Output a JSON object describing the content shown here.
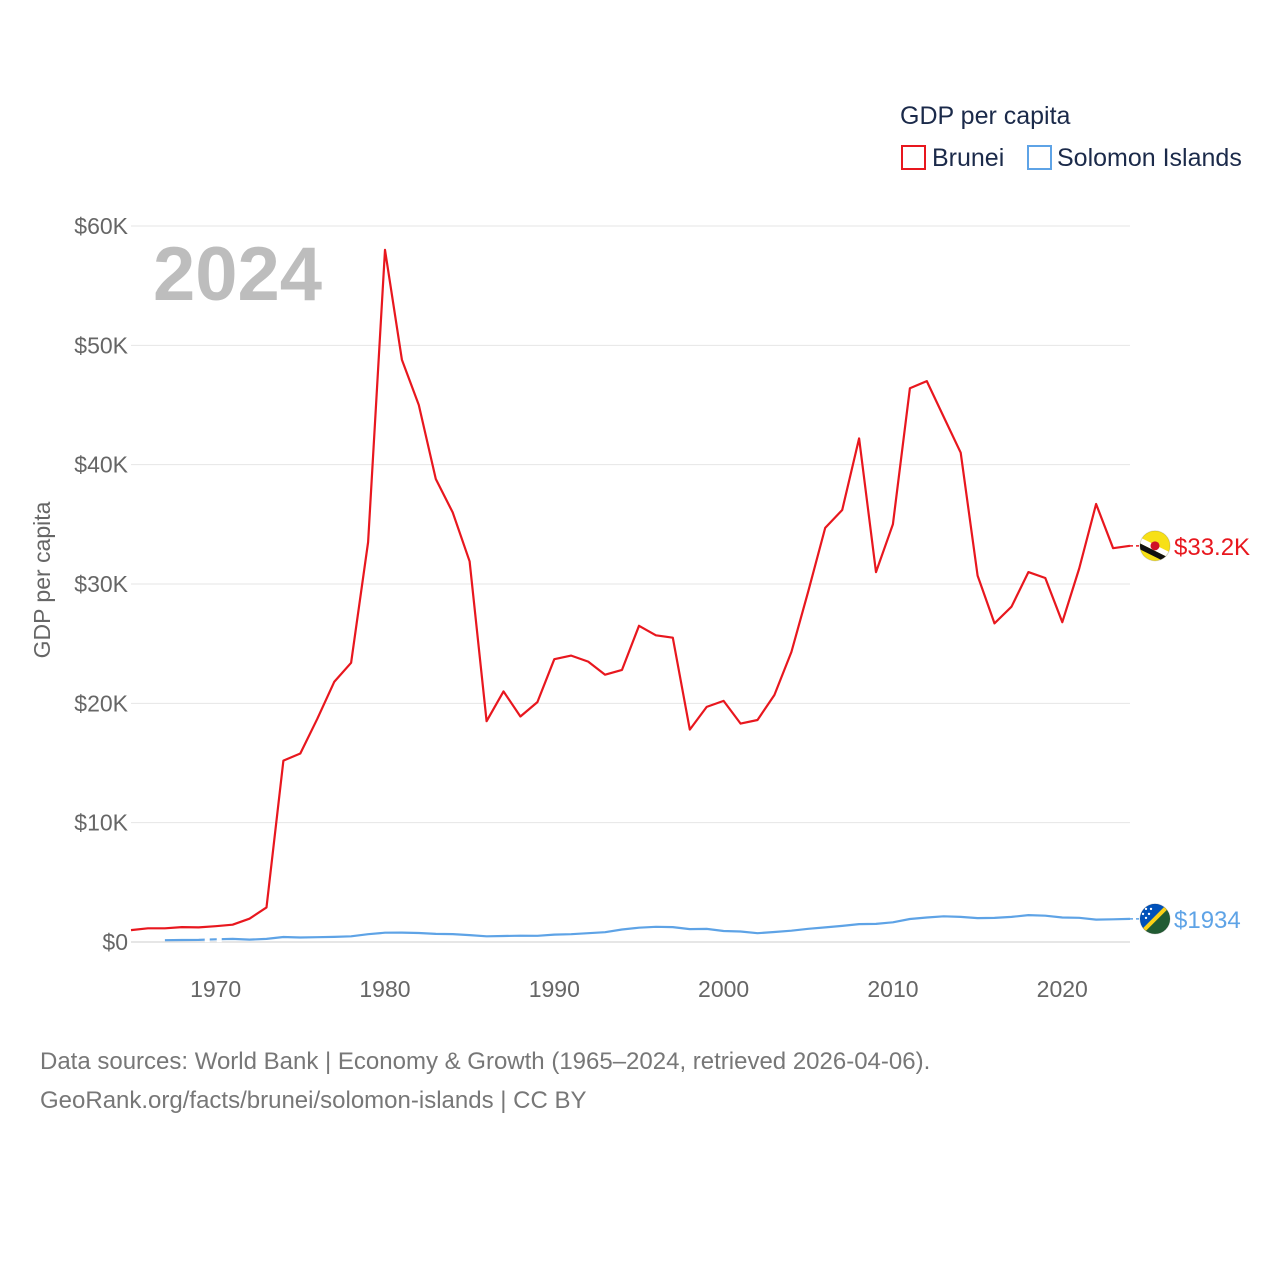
{
  "chart_data": {
    "type": "line",
    "legend": {
      "title": "GDP per capita",
      "position": "top-right"
    },
    "current_year": "2024",
    "ylabel": "GDP per capita",
    "xlim": [
      1965,
      2024
    ],
    "ylim": [
      0,
      60000
    ],
    "x_ticks": [
      1970,
      1980,
      1990,
      2000,
      2010,
      2020
    ],
    "y_ticks": [
      {
        "value": 0,
        "label": "$0"
      },
      {
        "value": 10000,
        "label": "$10K"
      },
      {
        "value": 20000,
        "label": "$20K"
      },
      {
        "value": 30000,
        "label": "$30K"
      },
      {
        "value": 40000,
        "label": "$40K"
      },
      {
        "value": 50000,
        "label": "$50K"
      },
      {
        "value": 60000,
        "label": "$60K"
      }
    ],
    "series": [
      {
        "name": "Brunei",
        "color": "#e8171e",
        "end_label": "$33.2K",
        "flag": "brunei-flag-icon",
        "x": [
          1965,
          1966,
          1967,
          1968,
          1969,
          1970,
          1971,
          1972,
          1973,
          1974,
          1975,
          1976,
          1977,
          1978,
          1979,
          1980,
          1981,
          1982,
          1983,
          1984,
          1985,
          1986,
          1987,
          1988,
          1989,
          1990,
          1991,
          1992,
          1993,
          1994,
          1995,
          1996,
          1997,
          1998,
          1999,
          2000,
          2001,
          2002,
          2003,
          2004,
          2005,
          2006,
          2007,
          2008,
          2009,
          2010,
          2011,
          2012,
          2013,
          2014,
          2015,
          2016,
          2017,
          2018,
          2019,
          2020,
          2021,
          2022,
          2023,
          2024
        ],
        "values": [
          1000,
          1150,
          1150,
          1250,
          1220,
          1320,
          1450,
          1950,
          2900,
          15200,
          15800,
          18700,
          21800,
          23400,
          33500,
          58000,
          48800,
          45000,
          38800,
          36000,
          31900,
          18500,
          21000,
          18900,
          20100,
          23700,
          24000,
          23500,
          22400,
          22800,
          26500,
          25700,
          25500,
          17800,
          19700,
          20200,
          18300,
          18600,
          20700,
          24300,
          29400,
          34700,
          36200,
          42200,
          31000,
          35000,
          46400,
          47000,
          44000,
          41000,
          30700,
          26700,
          28100,
          31000,
          30500,
          26800,
          31300,
          36700,
          33000,
          33200
        ]
      },
      {
        "name": "Solomon Islands",
        "color": "#5ea3e6",
        "end_label": "$1934",
        "flag": "solomon-islands-flag-icon",
        "gaps": [
          [
            1969,
            1971
          ]
        ],
        "x": [
          1967,
          1968,
          1969,
          1970,
          1971,
          1972,
          1973,
          1974,
          1975,
          1976,
          1977,
          1978,
          1979,
          1980,
          1981,
          1982,
          1983,
          1984,
          1985,
          1986,
          1987,
          1988,
          1989,
          1990,
          1991,
          1992,
          1993,
          1994,
          1995,
          1996,
          1997,
          1998,
          1999,
          2000,
          2001,
          2002,
          2003,
          2004,
          2005,
          2006,
          2007,
          2008,
          2009,
          2010,
          2011,
          2012,
          2013,
          2014,
          2015,
          2016,
          2017,
          2018,
          2019,
          2020,
          2021,
          2022,
          2023,
          2024
        ],
        "values": [
          150,
          170,
          180,
          230,
          260,
          200,
          260,
          420,
          380,
          400,
          430,
          480,
          650,
          780,
          790,
          750,
          680,
          660,
          580,
          480,
          500,
          530,
          520,
          620,
          650,
          740,
          820,
          1050,
          1200,
          1270,
          1250,
          1080,
          1100,
          920,
          880,
          740,
          840,
          950,
          1110,
          1220,
          1350,
          1500,
          1520,
          1650,
          1930,
          2050,
          2150,
          2100,
          2000,
          2020,
          2100,
          2250,
          2200,
          2050,
          2030,
          1880,
          1900,
          1934
        ]
      }
    ]
  },
  "footer": {
    "line1": "Data sources: World Bank | Economy & Growth (1965–2024, retrieved 2026-04-06).",
    "line2": "GeoRank.org/facts/brunei/solomon-islands | CC BY"
  }
}
